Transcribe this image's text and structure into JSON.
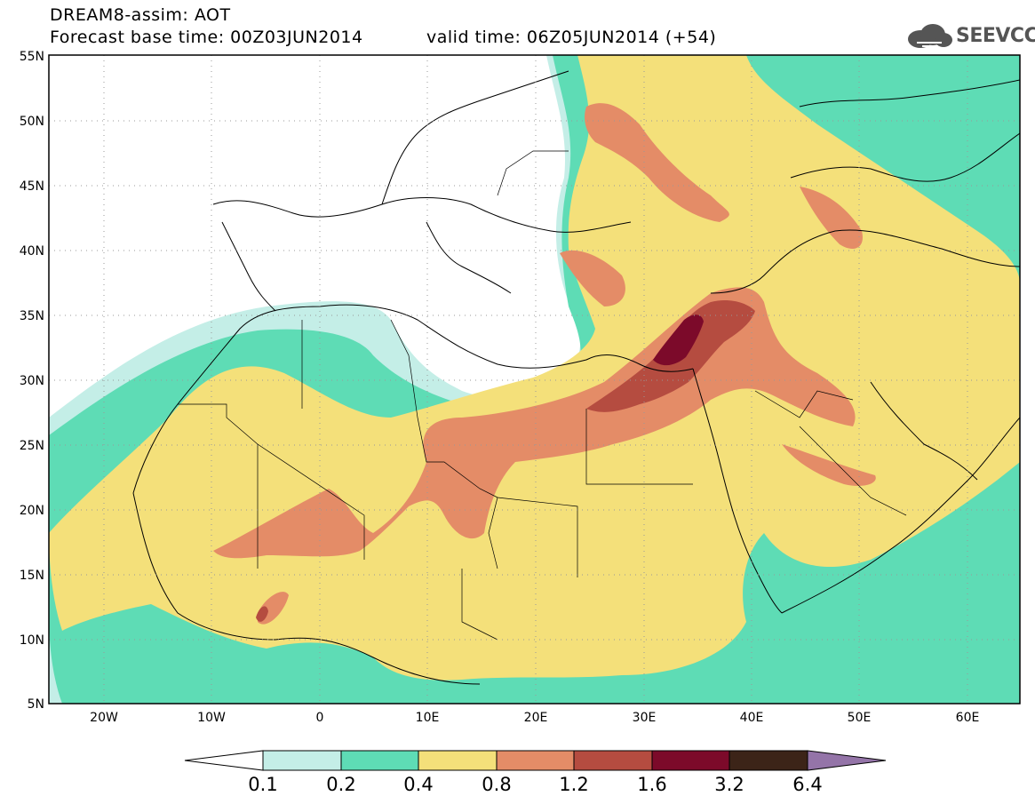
{
  "header": {
    "line1": "DREAM8-assim: AOT",
    "line2": "Forecast base time: 00Z03JUN2014",
    "valid": "valid time: 06Z05JUN2014 (+54)"
  },
  "logo": {
    "text": "SEEVCCC",
    "icon": "cloud-logo-icon"
  },
  "axes": {
    "lat_labels": [
      "55N",
      "50N",
      "45N",
      "40N",
      "35N",
      "30N",
      "25N",
      "20N",
      "15N",
      "10N",
      "5N"
    ],
    "lon_labels": [
      "20W",
      "10W",
      "0",
      "10E",
      "20E",
      "30E",
      "40E",
      "50E",
      "60E"
    ]
  },
  "colorbar": {
    "labels": [
      "0.1",
      "0.2",
      "0.4",
      "0.8",
      "1.2",
      "1.6",
      "3.2",
      "6.4"
    ],
    "colors": [
      "#ffffff",
      "#c4eee7",
      "#5edcb5",
      "#f4e07a",
      "#e48c67",
      "#b54c40",
      "#7c0a2a",
      "#3c2418",
      "#9474a8"
    ]
  },
  "colors": {
    "c1": "#c4eee7",
    "c2": "#5edcb5",
    "c3": "#f4e07a",
    "c4": "#e48c67",
    "c5": "#b54c40",
    "c6": "#7c0a2a"
  }
}
